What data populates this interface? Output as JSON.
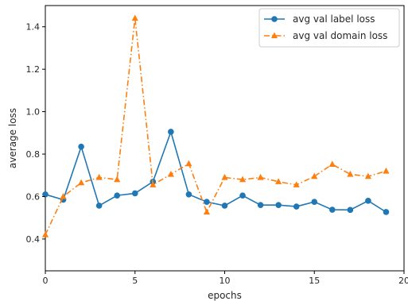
{
  "chart_data": {
    "type": "line",
    "title": "",
    "xlabel": "epochs",
    "ylabel": "average loss",
    "xlim": [
      0,
      20
    ],
    "ylim": [
      0.25,
      1.5
    ],
    "xticks": [
      0,
      5,
      10,
      15,
      20
    ],
    "yticks": [
      0.4,
      0.6,
      0.8,
      1.0,
      1.2,
      1.4
    ],
    "xtick_labels": [
      "0",
      "5",
      "10",
      "15",
      "20"
    ],
    "ytick_labels": [
      "0.4",
      "0.6",
      "0.8",
      "1.0",
      "1.2",
      "1.4"
    ],
    "grid": false,
    "legend_position": "top-right",
    "x": [
      0,
      1,
      2,
      3,
      4,
      5,
      6,
      7,
      8,
      9,
      10,
      11,
      12,
      13,
      14,
      15,
      16,
      17,
      18,
      19
    ],
    "series": [
      {
        "name": "avg val label loss",
        "color": "#1f77b4",
        "marker": "circle",
        "linestyle": "solid",
        "values": [
          0.61,
          0.585,
          0.835,
          0.557,
          0.605,
          0.615,
          0.67,
          0.905,
          0.61,
          0.575,
          0.557,
          0.605,
          0.56,
          0.56,
          0.553,
          0.575,
          0.538,
          0.537,
          0.58,
          0.527
        ]
      },
      {
        "name": "avg val domain loss",
        "color": "#ff7f0e",
        "marker": "triangle",
        "linestyle": "dashdot",
        "values": [
          0.42,
          0.6,
          0.665,
          0.69,
          0.68,
          1.44,
          0.655,
          0.705,
          0.755,
          0.527,
          0.69,
          0.68,
          0.69,
          0.67,
          0.655,
          0.695,
          0.752,
          0.705,
          0.695,
          0.72
        ]
      }
    ]
  }
}
